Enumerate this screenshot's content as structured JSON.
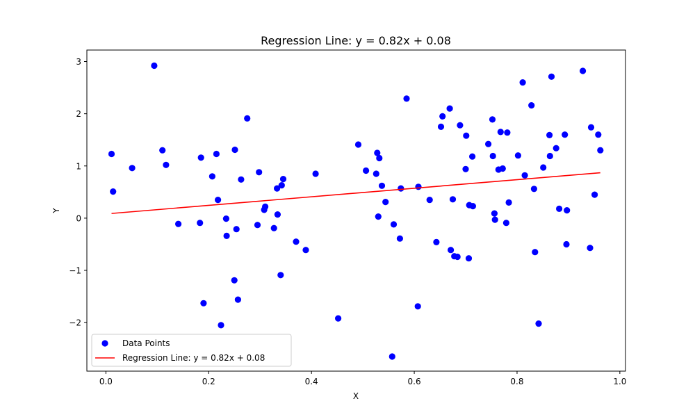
{
  "chart_data": {
    "type": "scatter",
    "title": "Regression Line: y = 0.82x + 0.08",
    "xlabel": "X",
    "ylabel": "Y",
    "xlim": [
      -0.037,
      1.011
    ],
    "ylim": [
      -2.93,
      3.22
    ],
    "xticks": [
      0.0,
      0.2,
      0.4,
      0.6,
      0.8,
      1.0
    ],
    "xtick_labels": [
      "0.0",
      "0.2",
      "0.4",
      "0.6",
      "0.8",
      "1.0"
    ],
    "yticks": [
      -2,
      -1,
      0,
      1,
      2,
      3
    ],
    "ytick_labels": [
      "−2",
      "−1",
      "0",
      "1",
      "2",
      "3"
    ],
    "grid": false,
    "legend_position": "lower-left",
    "series": [
      {
        "name": "Data Points",
        "kind": "scatter",
        "color": "#0000ff",
        "points": [
          [
            0.011,
            1.23
          ],
          [
            0.014,
            0.51
          ],
          [
            0.051,
            0.96
          ],
          [
            0.094,
            2.92
          ],
          [
            0.11,
            1.3
          ],
          [
            0.117,
            1.02
          ],
          [
            0.141,
            -0.11
          ],
          [
            0.183,
            -0.09
          ],
          [
            0.185,
            1.16
          ],
          [
            0.19,
            -1.63
          ],
          [
            0.207,
            0.8
          ],
          [
            0.215,
            1.23
          ],
          [
            0.218,
            0.35
          ],
          [
            0.224,
            -2.05
          ],
          [
            0.234,
            -0.01
          ],
          [
            0.235,
            -0.34
          ],
          [
            0.25,
            -1.19
          ],
          [
            0.251,
            1.31
          ],
          [
            0.254,
            -0.21
          ],
          [
            0.257,
            -1.56
          ],
          [
            0.263,
            0.74
          ],
          [
            0.275,
            1.91
          ],
          [
            0.295,
            -0.13
          ],
          [
            0.298,
            0.88
          ],
          [
            0.308,
            0.16
          ],
          [
            0.31,
            0.22
          ],
          [
            0.327,
            -0.19
          ],
          [
            0.333,
            0.57
          ],
          [
            0.334,
            0.07
          ],
          [
            0.34,
            -1.09
          ],
          [
            0.342,
            0.63
          ],
          [
            0.345,
            0.75
          ],
          [
            0.37,
            -0.45
          ],
          [
            0.389,
            -0.61
          ],
          [
            0.408,
            0.85
          ],
          [
            0.452,
            -1.92
          ],
          [
            0.491,
            1.41
          ],
          [
            0.506,
            0.91
          ],
          [
            0.526,
            0.85
          ],
          [
            0.528,
            1.25
          ],
          [
            0.53,
            0.03
          ],
          [
            0.532,
            1.15
          ],
          [
            0.537,
            0.62
          ],
          [
            0.544,
            0.31
          ],
          [
            0.557,
            -2.65
          ],
          [
            0.56,
            -0.12
          ],
          [
            0.572,
            -0.39
          ],
          [
            0.574,
            0.57
          ],
          [
            0.585,
            2.29
          ],
          [
            0.607,
            -1.69
          ],
          [
            0.608,
            0.6
          ],
          [
            0.63,
            0.35
          ],
          [
            0.643,
            -0.46
          ],
          [
            0.652,
            1.75
          ],
          [
            0.655,
            1.95
          ],
          [
            0.669,
            2.1
          ],
          [
            0.671,
            -0.61
          ],
          [
            0.675,
            0.36
          ],
          [
            0.678,
            -0.73
          ],
          [
            0.684,
            -0.74
          ],
          [
            0.689,
            1.78
          ],
          [
            0.7,
            0.94
          ],
          [
            0.701,
            1.58
          ],
          [
            0.706,
            -0.77
          ],
          [
            0.707,
            0.25
          ],
          [
            0.713,
            1.18
          ],
          [
            0.714,
            0.23
          ],
          [
            0.744,
            1.42
          ],
          [
            0.752,
            1.89
          ],
          [
            0.753,
            1.19
          ],
          [
            0.756,
            0.09
          ],
          [
            0.757,
            -0.03
          ],
          [
            0.764,
            0.93
          ],
          [
            0.768,
            1.65
          ],
          [
            0.772,
            0.95
          ],
          [
            0.779,
            -0.09
          ],
          [
            0.781,
            1.64
          ],
          [
            0.784,
            0.3
          ],
          [
            0.802,
            1.2
          ],
          [
            0.811,
            2.6
          ],
          [
            0.815,
            0.82
          ],
          [
            0.828,
            2.16
          ],
          [
            0.833,
            0.56
          ],
          [
            0.835,
            -0.65
          ],
          [
            0.842,
            -2.02
          ],
          [
            0.851,
            0.97
          ],
          [
            0.863,
            1.59
          ],
          [
            0.864,
            1.19
          ],
          [
            0.867,
            2.71
          ],
          [
            0.876,
            1.34
          ],
          [
            0.882,
            0.18
          ],
          [
            0.893,
            1.6
          ],
          [
            0.896,
            -0.5
          ],
          [
            0.897,
            0.15
          ],
          [
            0.928,
            2.82
          ],
          [
            0.942,
            -0.57
          ],
          [
            0.944,
            1.74
          ],
          [
            0.951,
            0.45
          ],
          [
            0.958,
            1.6
          ],
          [
            0.962,
            1.3
          ]
        ]
      },
      {
        "name": "Regression Line: y = 0.82x + 0.08",
        "kind": "line",
        "color": "#ff0000",
        "x": [
          0.011,
          0.962
        ],
        "y": [
          0.09,
          0.87
        ]
      }
    ]
  }
}
